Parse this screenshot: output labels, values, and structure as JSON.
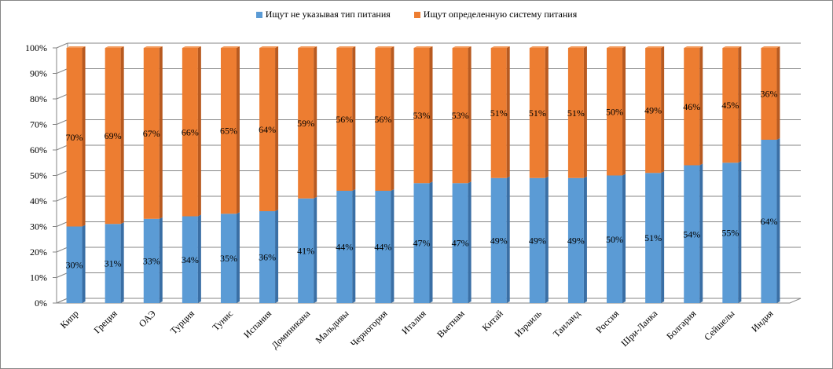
{
  "chart_data": {
    "type": "bar",
    "stacked": true,
    "percent_axis": true,
    "categories": [
      "Кипр",
      "Греция",
      "ОАЭ",
      "Турция",
      "Тунис",
      "Испания",
      "Доминикана",
      "Мальдивы",
      "Черногория",
      "Италия",
      "Вьетнам",
      "Китай",
      "Израиль",
      "Таиланд",
      "Россия",
      "Шри-Ланка",
      "Болгария",
      "Сейшелы",
      "Индия"
    ],
    "series": [
      {
        "name": "Ищут не указывая тип питания",
        "color": "#5B9BD5",
        "values": [
          30,
          31,
          33,
          34,
          35,
          36,
          41,
          44,
          44,
          47,
          47,
          49,
          49,
          49,
          50,
          51,
          54,
          55,
          64
        ]
      },
      {
        "name": "Ищут определенную систему питания",
        "color": "#ED7D31",
        "values": [
          70,
          69,
          67,
          66,
          65,
          64,
          59,
          56,
          56,
          53,
          53,
          51,
          51,
          51,
          50,
          49,
          46,
          45,
          36
        ]
      }
    ],
    "yticks": [
      "0%",
      "10%",
      "20%",
      "30%",
      "40%",
      "50%",
      "60%",
      "70%",
      "80%",
      "90%",
      "100%"
    ],
    "ylim": [
      0,
      100
    ],
    "title": "",
    "xlabel": "",
    "ylabel": "",
    "grid": true,
    "legend_position": "top"
  }
}
